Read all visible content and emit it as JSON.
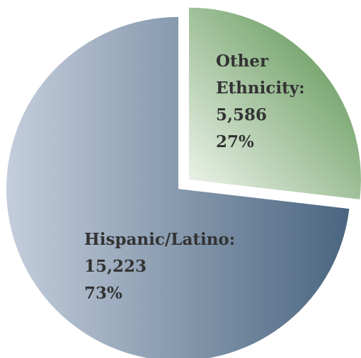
{
  "chart_data": {
    "type": "pie",
    "slices": [
      {
        "label": "Hispanic/Latino:",
        "count": "15,223",
        "percent": "73%",
        "value": 15223,
        "color_light": "#c4cedc",
        "color_dark": "#4a6580"
      },
      {
        "label_lines": [
          "Other",
          "Ethnicity:"
        ],
        "count": "5,586",
        "percent": "27%",
        "value": 5586,
        "exploded": true,
        "color_light": "#f2f7ef",
        "color_dark": "#4e8a45"
      }
    ]
  }
}
